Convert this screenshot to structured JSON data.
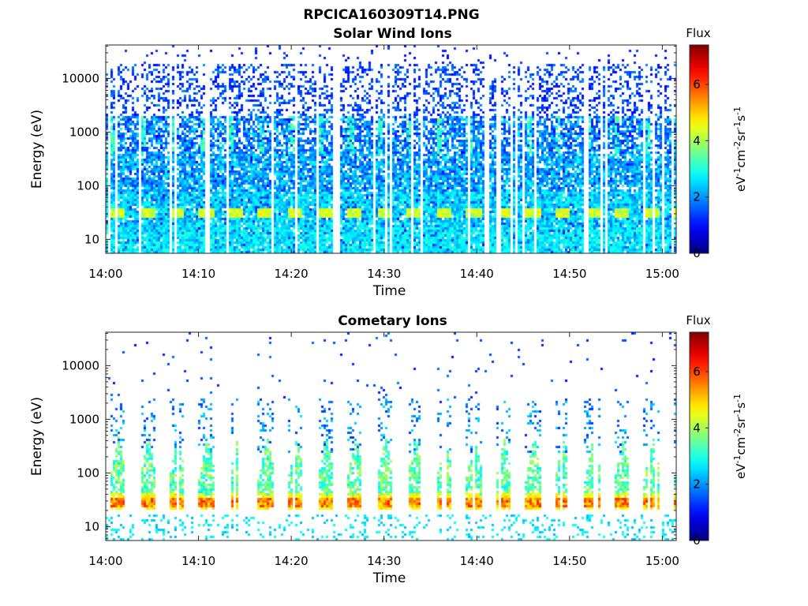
{
  "figure": {
    "title": "RPCICA160309T14.PNG",
    "colormap": "jet",
    "background": "#ffffff"
  },
  "chart_data": [
    {
      "type": "heatmap",
      "title": "Solar Wind Ions",
      "xlabel": "Time",
      "ylabel": "Energy (eV)",
      "x_tick_labels": [
        "14:00",
        "14:10",
        "14:20",
        "14:30",
        "14:40",
        "14:50",
        "15:00"
      ],
      "x_range_minutes": [
        0,
        61.5
      ],
      "y_scale": "log",
      "y_tick_labels": [
        "10",
        "100",
        "1000",
        "10000"
      ],
      "y_range": [
        5.5,
        42000
      ],
      "colorbar": {
        "title": "Flux",
        "label": "eV-1cm-2sr-1s-1",
        "ticks": [
          "0",
          "2",
          "4",
          "6"
        ],
        "range": [
          0,
          7.4
        ]
      },
      "features": {
        "band_energy_eV": 32,
        "band_peak_flux": 4.8,
        "pulse_period_minutes": 3.2,
        "pulse_count": 19,
        "background_flux": 1.4
      }
    },
    {
      "type": "heatmap",
      "title": "Cometary Ions",
      "xlabel": "Time",
      "ylabel": "Energy (eV)",
      "x_tick_labels": [
        "14:00",
        "14:10",
        "14:20",
        "14:30",
        "14:40",
        "14:50",
        "15:00"
      ],
      "x_range_minutes": [
        0,
        61.5
      ],
      "y_scale": "log",
      "y_tick_labels": [
        "10",
        "100",
        "1000",
        "10000"
      ],
      "y_range": [
        5.5,
        42000
      ],
      "colorbar": {
        "title": "Flux",
        "label": "eV-1cm-2sr-1s-1",
        "ticks": [
          "0",
          "2",
          "4",
          "6"
        ],
        "range": [
          0,
          7.4
        ]
      },
      "features": {
        "band_energy_eV": 30,
        "band_peak_flux": 6.3,
        "pulse_period_minutes": 3.2,
        "pulse_count": 19,
        "background_flux": 0.4
      }
    }
  ]
}
